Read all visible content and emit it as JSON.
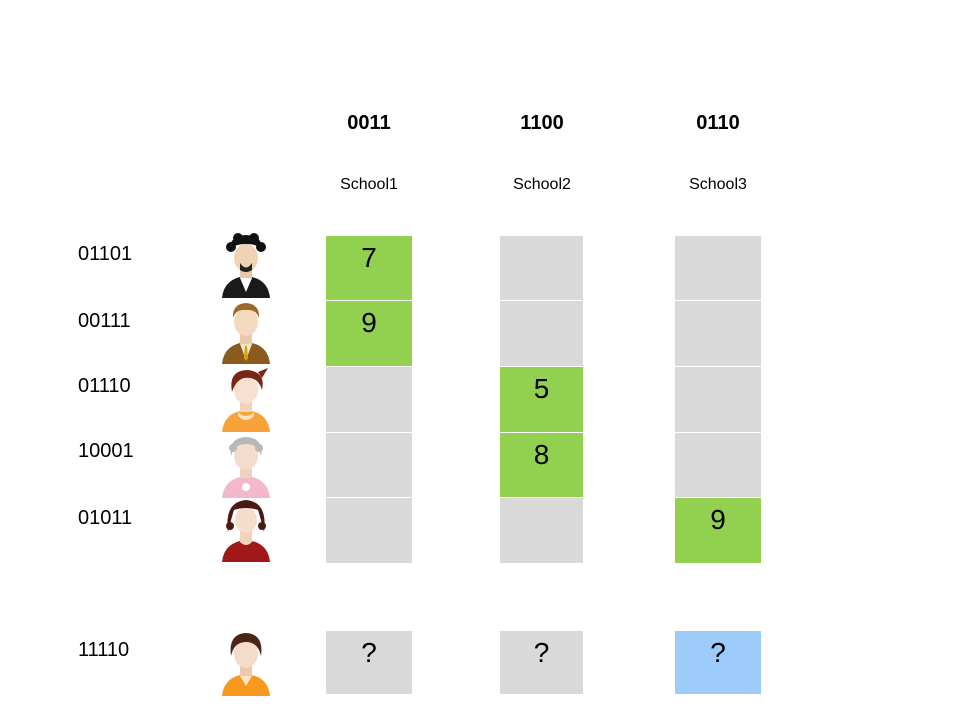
{
  "columns": [
    {
      "code": "0011",
      "name": "School1"
    },
    {
      "code": "1100",
      "name": "School2"
    },
    {
      "code": "0110",
      "name": "School3"
    }
  ],
  "rows": [
    {
      "code": "01101",
      "avatar": "man-afro-suit-icon",
      "cells": [
        "7",
        "",
        ""
      ]
    },
    {
      "code": "00111",
      "avatar": "man-brown-suit-icon",
      "cells": [
        "9",
        "",
        ""
      ]
    },
    {
      "code": "01110",
      "avatar": "woman-orange-top-icon",
      "cells": [
        "",
        "5",
        ""
      ]
    },
    {
      "code": "10001",
      "avatar": "elderly-woman-icon",
      "cells": [
        "",
        "8",
        ""
      ]
    },
    {
      "code": "01011",
      "avatar": "woman-curly-red-icon",
      "cells": [
        "",
        "",
        "9"
      ]
    }
  ],
  "query_row": {
    "code": "11110",
    "avatar": "person-orange-shirt-icon",
    "cells": [
      "?",
      "?",
      "?"
    ]
  },
  "colors": {
    "empty": "#d9d9d9",
    "filled": "#92d050",
    "highlight": "#9dcbfa"
  }
}
